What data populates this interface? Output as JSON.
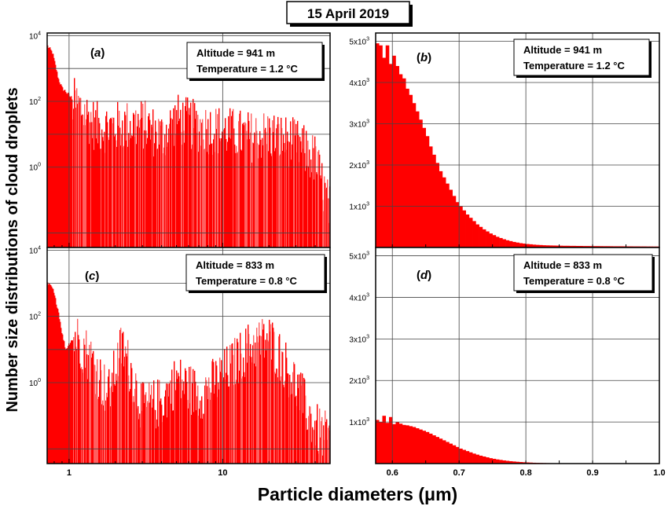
{
  "figure": {
    "header_title": "15 April 2019",
    "ylabel": "Number size distributions of cloud droplets",
    "xlabel": "Particle diameters (μm)",
    "bar_color": "#ff0000",
    "bar_light_color": "#ff6060",
    "grid_color": "#444444"
  },
  "chart_data": [
    {
      "panel": "a",
      "type": "bar",
      "panel_label": "a",
      "annotation": [
        "Altitude = 941 m",
        "Temperature = 1.2 °C"
      ],
      "x_scale": "log",
      "y_scale": "log",
      "xlim": [
        0.72,
        50
      ],
      "ylim": [
        0.0036,
        12000
      ],
      "y_ticks": [
        {
          "value": 1,
          "label": "10^0"
        },
        {
          "value": 100,
          "label": "10^2"
        },
        {
          "value": 10000,
          "label": "10^4"
        }
      ],
      "x_ticks": [
        1,
        10
      ],
      "grid": true,
      "profile": {
        "x": [
          0.72,
          0.78,
          0.85,
          0.9,
          0.95,
          1.0,
          1.1,
          1.2,
          1.5,
          2,
          3,
          4,
          5,
          7,
          10,
          15,
          20,
          30,
          40,
          50
        ],
        "y": [
          5000,
          3000,
          500,
          250,
          200,
          150,
          100,
          70,
          20,
          20,
          25,
          10,
          35,
          20,
          15,
          10,
          12,
          6,
          2,
          0.05
        ]
      }
    },
    {
      "panel": "b",
      "type": "bar",
      "panel_label": "b",
      "annotation": [
        "Altitude = 941 m",
        "Temperature = 1.2 °C"
      ],
      "x_scale": "linear",
      "y_scale": "linear",
      "xlim": [
        0.575,
        1.0
      ],
      "ylim": [
        0,
        5200
      ],
      "y_ticks": [
        {
          "value": 1000,
          "label": "1x10^3"
        },
        {
          "value": 2000,
          "label": "2x10^3"
        },
        {
          "value": 3000,
          "label": "3x10^3"
        },
        {
          "value": 4000,
          "label": "4x10^3"
        },
        {
          "value": 5000,
          "label": "5x10^3"
        }
      ],
      "x_ticks": [
        {
          "value": 0.6,
          "label": "0.6"
        },
        {
          "value": 0.7,
          "label": "0.7"
        },
        {
          "value": 0.8,
          "label": "0.8"
        },
        {
          "value": 0.9,
          "label": "0.9"
        },
        {
          "value": 1.0,
          "label": "1.0"
        }
      ],
      "grid": true,
      "bins": {
        "x": [
          0.5775,
          0.5825,
          0.5875,
          0.5925,
          0.5975,
          0.6025,
          0.6075,
          0.6125,
          0.6175,
          0.6225,
          0.6275,
          0.6325,
          0.6375,
          0.6425,
          0.6475,
          0.6525,
          0.6575,
          0.6625,
          0.6675,
          0.6725,
          0.6775,
          0.6825,
          0.6875,
          0.6925,
          0.6975,
          0.7025,
          0.7075,
          0.7125,
          0.7175,
          0.7225,
          0.7275,
          0.7325,
          0.7375,
          0.7425,
          0.7475,
          0.7525,
          0.7575,
          0.7625,
          0.7675,
          0.7725,
          0.7775,
          0.7825,
          0.7875,
          0.7925,
          0.7975,
          0.8025,
          0.8075,
          0.8125,
          0.8175,
          0.8225,
          0.8275,
          0.8325,
          0.8375,
          0.8425,
          0.8475,
          0.8525,
          0.8575,
          0.8625,
          0.8675,
          0.8725,
          0.8775,
          0.8825,
          0.8875,
          0.8925,
          0.8975,
          0.9025,
          0.9075,
          0.9125,
          0.9175,
          0.9225,
          0.9275,
          0.9325,
          0.9375,
          0.9425,
          0.9475,
          0.9525,
          0.9575,
          0.9625,
          0.9675,
          0.9725,
          0.9775,
          0.9825,
          0.9875,
          0.9925,
          0.9975
        ],
        "values": [
          4950,
          4900,
          4600,
          4900,
          4450,
          4650,
          4400,
          4200,
          4100,
          3850,
          3700,
          3500,
          3300,
          3100,
          2900,
          2700,
          2450,
          2250,
          2050,
          1850,
          1700,
          1550,
          1400,
          1250,
          1100,
          1000,
          900,
          800,
          720,
          640,
          560,
          500,
          440,
          390,
          340,
          300,
          260,
          230,
          200,
          175,
          155,
          135,
          120,
          105,
          95,
          85,
          78,
          70,
          64,
          60,
          55,
          52,
          50,
          48,
          46,
          44,
          42,
          42,
          40,
          40,
          38,
          38,
          36,
          36,
          35,
          34,
          34,
          33,
          32,
          32,
          31,
          30,
          30,
          30,
          29,
          28,
          28,
          27,
          27,
          26,
          26,
          25,
          25,
          24,
          24
        ]
      }
    },
    {
      "panel": "c",
      "type": "bar",
      "panel_label": "c",
      "annotation": [
        "Altitude = 833 m",
        "Temperature = 0.8 °C"
      ],
      "x_scale": "log",
      "y_scale": "log",
      "xlim": [
        0.72,
        50
      ],
      "ylim": [
        0.0036,
        12000
      ],
      "y_ticks": [
        {
          "value": 1,
          "label": "10^0"
        },
        {
          "value": 100,
          "label": "10^2"
        },
        {
          "value": 10000,
          "label": "10^4"
        }
      ],
      "x_ticks": [
        {
          "value": 1,
          "label": "1"
        },
        {
          "value": 10,
          "label": "10"
        }
      ],
      "grid": true,
      "profile": {
        "x": [
          0.72,
          0.78,
          0.85,
          0.9,
          0.95,
          1.0,
          1.1,
          1.3,
          1.5,
          1.8,
          2.2,
          2.5,
          3,
          4,
          5,
          7,
          10,
          15,
          20,
          25,
          30,
          40,
          50
        ],
        "y": [
          1000,
          700,
          150,
          30,
          10,
          15,
          30,
          10,
          3,
          0.5,
          15,
          3,
          0.2,
          0.3,
          1.5,
          0.5,
          2,
          15,
          25,
          5,
          1,
          0.05,
          0.02
        ]
      }
    },
    {
      "panel": "d",
      "type": "bar",
      "panel_label": "d",
      "annotation": [
        "Altitude = 833 m",
        "Temperature = 0.8 °C"
      ],
      "x_scale": "linear",
      "y_scale": "linear",
      "xlim": [
        0.575,
        1.0
      ],
      "ylim": [
        0,
        5200
      ],
      "y_ticks": [
        {
          "value": 1000,
          "label": "1x10^3"
        },
        {
          "value": 2000,
          "label": "2x10^3"
        },
        {
          "value": 3000,
          "label": "3x10^3"
        },
        {
          "value": 4000,
          "label": "4x10^3"
        },
        {
          "value": 5000,
          "label": "5x10^3"
        }
      ],
      "x_ticks": [
        {
          "value": 0.6,
          "label": "0.6"
        },
        {
          "value": 0.7,
          "label": "0.7"
        },
        {
          "value": 0.8,
          "label": "0.8"
        },
        {
          "value": 0.9,
          "label": "0.9"
        },
        {
          "value": 1.0,
          "label": "1.0"
        }
      ],
      "grid": true,
      "bins": {
        "x": [
          0.5775,
          0.5825,
          0.5875,
          0.5925,
          0.5975,
          0.6025,
          0.6075,
          0.6125,
          0.6175,
          0.6225,
          0.6275,
          0.6325,
          0.6375,
          0.6425,
          0.6475,
          0.6525,
          0.6575,
          0.6625,
          0.6675,
          0.6725,
          0.6775,
          0.6825,
          0.6875,
          0.6925,
          0.6975,
          0.7025,
          0.7075,
          0.7125,
          0.7175,
          0.7225,
          0.7275,
          0.7325,
          0.7375,
          0.7425,
          0.7475,
          0.7525,
          0.7575,
          0.7625,
          0.7675,
          0.7725,
          0.7775,
          0.7825,
          0.7875,
          0.7925,
          0.7975,
          0.8025,
          0.8075,
          0.8125,
          0.8175,
          0.8225,
          0.8275,
          0.8325,
          0.8375,
          0.8425,
          0.8475,
          0.8525,
          0.8575,
          0.8625,
          0.8675,
          0.8725,
          0.8775,
          0.8825,
          0.8875,
          0.8925,
          0.8975,
          0.9025,
          0.9075,
          0.9125,
          0.9175,
          0.9225,
          0.9275,
          0.9325,
          0.9375,
          0.9425,
          0.9475,
          0.9525,
          0.9575,
          0.9625,
          0.9675,
          0.9725,
          0.9775,
          0.9825,
          0.9875,
          0.9925,
          0.9975
        ],
        "values": [
          1050,
          1000,
          1150,
          980,
          1120,
          950,
          1000,
          960,
          930,
          920,
          900,
          880,
          850,
          820,
          790,
          760,
          720,
          680,
          640,
          600,
          560,
          520,
          480,
          440,
          400,
          360,
          330,
          300,
          270,
          240,
          215,
          190,
          170,
          150,
          130,
          115,
          100,
          88,
          76,
          66,
          57,
          50,
          43,
          37,
          32,
          28,
          24,
          20,
          17,
          15,
          13,
          11,
          10,
          9,
          8,
          7,
          6,
          6,
          5,
          5,
          4,
          4,
          4,
          3,
          3,
          3,
          3,
          2,
          2,
          2,
          2,
          2,
          2,
          2,
          1,
          1,
          1,
          1,
          1,
          1,
          1,
          1,
          1,
          1,
          1
        ]
      }
    }
  ]
}
